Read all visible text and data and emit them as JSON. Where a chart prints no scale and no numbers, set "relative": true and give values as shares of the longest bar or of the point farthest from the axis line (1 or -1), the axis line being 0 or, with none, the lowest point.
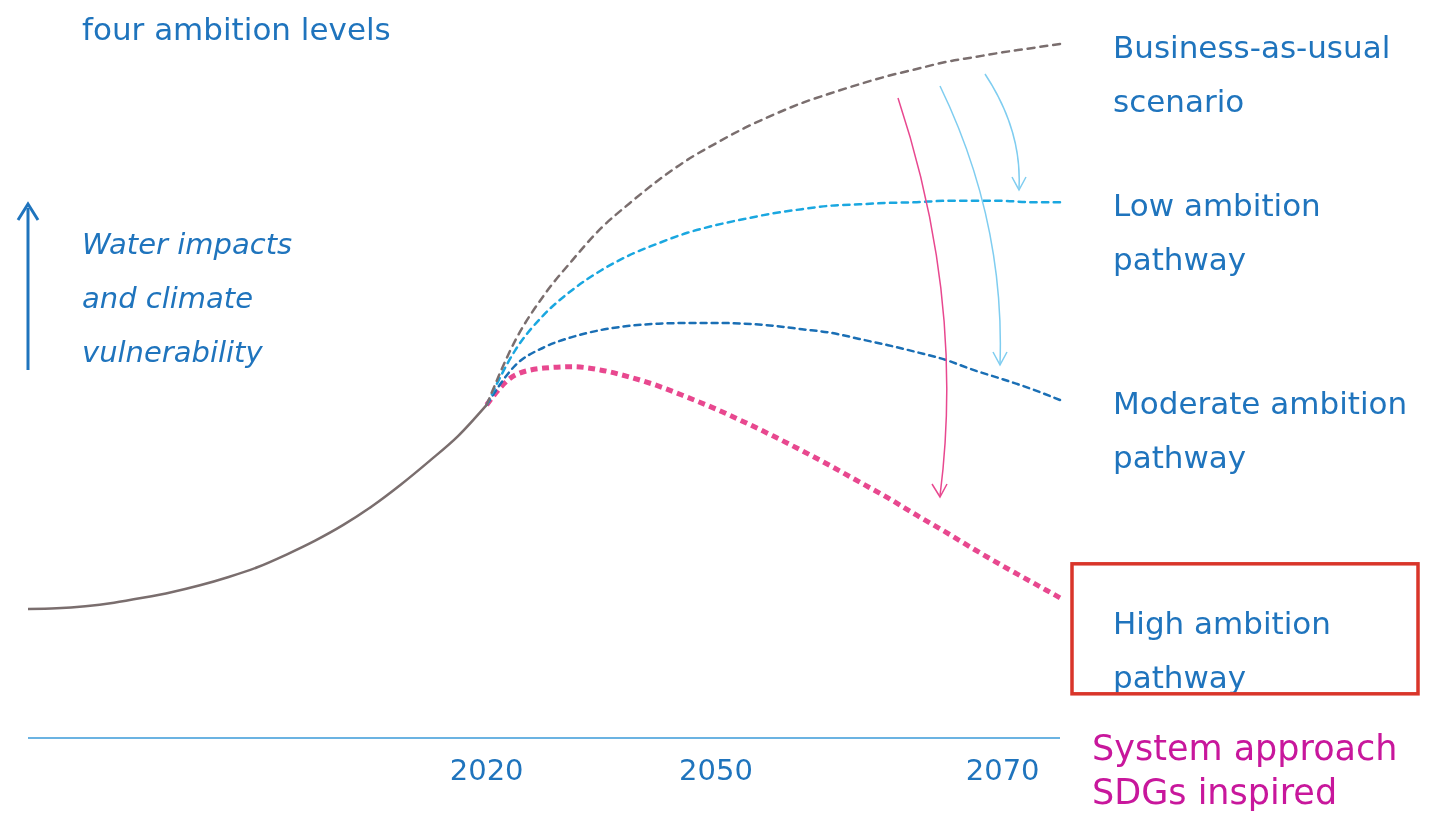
{
  "chart_data": {
    "type": "line",
    "relative": true,
    "ylabel": "Water impacts and climate vulnerability",
    "annotations": [
      "four ambition levels",
      "System approach SDGs inspired"
    ],
    "categories": [
      null,
      null,
      null,
      null,
      null,
      null,
      null,
      null,
      null,
      null,
      null,
      null,
      null,
      null,
      null,
      null,
      "2020",
      null,
      null,
      null,
      null,
      null,
      null,
      null,
      "2050",
      null,
      null,
      null,
      null,
      null,
      null,
      null,
      null,
      null,
      "2070",
      null,
      null
    ],
    "series": [
      {
        "color": "#7a6e6e",
        "line_style": "solid",
        "values": [
          0.186,
          0.187,
          0.19,
          0.195,
          0.202,
          0.21,
          0.22,
          0.232,
          0.246,
          0.264,
          0.284,
          0.307,
          0.334,
          0.365,
          0.399,
          0.435,
          0.48,
          null,
          null,
          null,
          null,
          null,
          null,
          null,
          null,
          null,
          null,
          null,
          null,
          null,
          null,
          null,
          null,
          null,
          null,
          null,
          null
        ]
      },
      {
        "name": "Business-as-usual scenario",
        "color": "#7a6e6e",
        "line_style": "dashed",
        "values": [
          null,
          null,
          null,
          null,
          null,
          null,
          null,
          null,
          null,
          null,
          null,
          null,
          null,
          null,
          null,
          null,
          0.48,
          0.573,
          0.638,
          0.689,
          0.735,
          0.771,
          0.804,
          0.833,
          0.857,
          0.879,
          0.898,
          0.915,
          0.929,
          0.942,
          0.954,
          0.964,
          0.974,
          0.981,
          0.988,
          0.994,
          1
        ]
      },
      {
        "name": "Low ambition pathway",
        "color": "#1aa7e0",
        "line_style": "dashed",
        "values": [
          null,
          null,
          null,
          null,
          null,
          null,
          null,
          null,
          null,
          null,
          null,
          null,
          null,
          null,
          null,
          null,
          0.48,
          0.559,
          0.61,
          0.646,
          0.674,
          0.696,
          0.713,
          0.728,
          0.739,
          0.748,
          0.756,
          0.762,
          0.767,
          0.769,
          0.771,
          0.772,
          0.774,
          0.774,
          0.774,
          0.772,
          0.772
        ]
      },
      {
        "name": "Moderate ambition pathway",
        "color": "#1a6fb5",
        "line_style": "dashed",
        "values": [
          null,
          null,
          null,
          null,
          null,
          null,
          null,
          null,
          null,
          null,
          null,
          null,
          null,
          null,
          null,
          null,
          0.48,
          0.537,
          0.563,
          0.578,
          0.588,
          0.594,
          0.597,
          0.598,
          0.598,
          0.597,
          0.594,
          0.589,
          0.584,
          0.575,
          0.566,
          0.556,
          0.545,
          0.53,
          0.517,
          0.503,
          0.487
        ]
      },
      {
        "name": "High ambition pathway",
        "color": "#e8488f",
        "line_style": "dotted",
        "values": [
          null,
          null,
          null,
          null,
          null,
          null,
          null,
          null,
          null,
          null,
          null,
          null,
          null,
          null,
          null,
          null,
          0.48,
          0.523,
          0.533,
          0.535,
          0.53,
          0.52,
          0.507,
          0.491,
          0.474,
          0.455,
          0.435,
          0.414,
          0.392,
          0.369,
          0.346,
          0.321,
          0.297,
          0.272,
          0.248,
          0.225,
          0.202
        ]
      }
    ]
  }
}
